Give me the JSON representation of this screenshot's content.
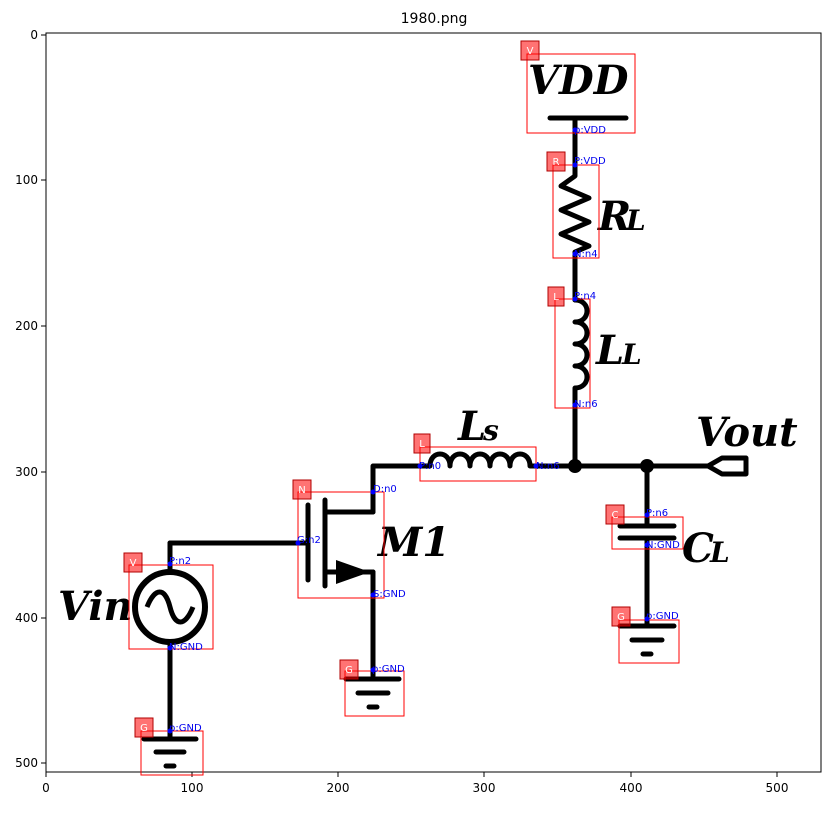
{
  "figure": {
    "title": "1980.png"
  },
  "axes": {
    "x_ticks": [
      "0",
      "100",
      "200",
      "300",
      "400",
      "500"
    ],
    "y_ticks": [
      "0",
      "100",
      "200",
      "300",
      "400",
      "500"
    ]
  },
  "labels": {
    "vdd": "VDD",
    "rl_main": "R",
    "rl_sub": "L",
    "ll_main": "L",
    "ll_sub": "L",
    "ls_main": "L",
    "ls_sub": "s",
    "vout": "Vout",
    "m1": "M1",
    "cl_main": "C",
    "cl_sub": "L",
    "vin": "Vin"
  },
  "components": [
    {
      "tag": "V",
      "pins": [
        "p:VDD"
      ]
    },
    {
      "tag": "R",
      "pins": [
        "P:VDD",
        "N:n4"
      ]
    },
    {
      "tag": "L",
      "pins": [
        "P:n4",
        "N:n6"
      ]
    },
    {
      "tag": "L",
      "pins": [
        "P:n0",
        "N:n6"
      ]
    },
    {
      "tag": "N",
      "pins": [
        "D:n0",
        "G:n2",
        "S:GND"
      ]
    },
    {
      "tag": "C",
      "pins": [
        "P:n6",
        "N:GND"
      ]
    },
    {
      "tag": "V",
      "pins": [
        "P:n2",
        "N:GND"
      ]
    },
    {
      "tag": "G",
      "pins": [
        "p:GND"
      ]
    },
    {
      "tag": "G",
      "pins": [
        "p:GND"
      ]
    },
    {
      "tag": "G",
      "pins": [
        "p:GND"
      ]
    }
  ]
}
